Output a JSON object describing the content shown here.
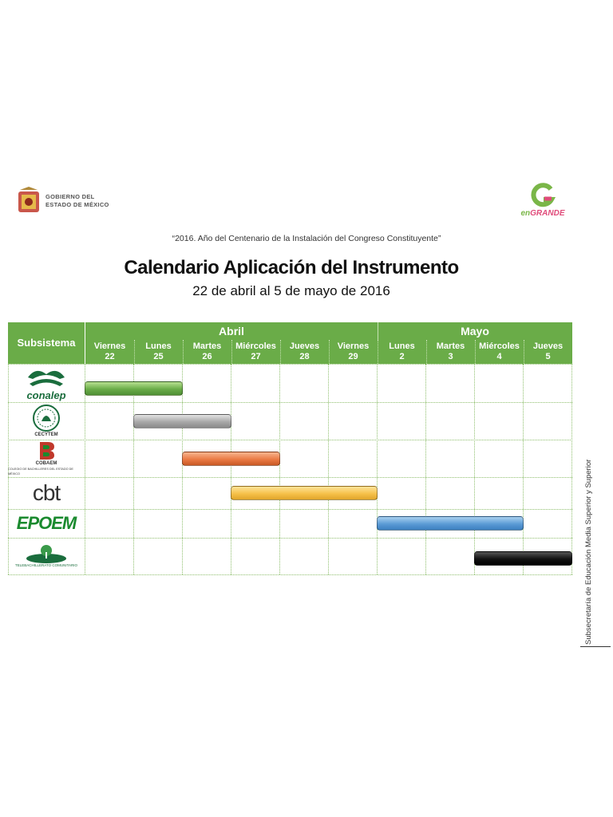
{
  "header": {
    "gov_line1": "GOBIERNO DEL",
    "gov_line2": "ESTADO DE MÉXICO",
    "brand_prefix": "en",
    "brand_word": "GRANDE",
    "motto": "“2016. Año del Centenario de la Instalación del Congreso Constituyente”",
    "title": "Calendario Aplicación del Instrumento",
    "subtitle": "22 de abril al 5 de mayo de 2016"
  },
  "table": {
    "subsystem_header": "Subsistema",
    "months": [
      {
        "name": "Abril",
        "span": 6
      },
      {
        "name": "Mayo",
        "span": 4
      }
    ],
    "days": [
      {
        "weekday": "Viernes",
        "day": "22"
      },
      {
        "weekday": "Lunes",
        "day": "25"
      },
      {
        "weekday": "Martes",
        "day": "26"
      },
      {
        "weekday": "Miércoles",
        "day": "27"
      },
      {
        "weekday": "Jueves",
        "day": "28"
      },
      {
        "weekday": "Viernes",
        "day": "29"
      },
      {
        "weekday": "Lunes",
        "day": "2"
      },
      {
        "weekday": "Martes",
        "day": "3"
      },
      {
        "weekday": "Miércoles",
        "day": "4"
      },
      {
        "weekday": "Jueves",
        "day": "5"
      }
    ],
    "rows": [
      {
        "subsystem": "conalep",
        "start_day_index": 0,
        "end_day_index": 1,
        "color": "#6aac48"
      },
      {
        "subsystem": "CECYTEM",
        "start_day_index": 1,
        "end_day_index": 2,
        "color": "#a8a8a8"
      },
      {
        "subsystem": "COBAEM",
        "start_day_index": 2,
        "end_day_index": 3,
        "color": "#ea7a44"
      },
      {
        "subsystem": "cbt",
        "start_day_index": 3,
        "end_day_index": 5,
        "color": "#f6c14a"
      },
      {
        "subsystem": "EPOEM",
        "start_day_index": 6,
        "end_day_index": 8,
        "color": "#5b9bd5"
      },
      {
        "subsystem": "TELEBACHILLERATO COMUNITARIO",
        "start_day_index": 8,
        "end_day_index": 9,
        "color": "#111111"
      }
    ]
  },
  "logos": {
    "cobaem_sub": "COLEGIO DE BACHILLERES DEL ESTADO DE MÉXICO"
  },
  "side": {
    "text": "Subsecretaría de Educación Media Superior y Superior"
  }
}
